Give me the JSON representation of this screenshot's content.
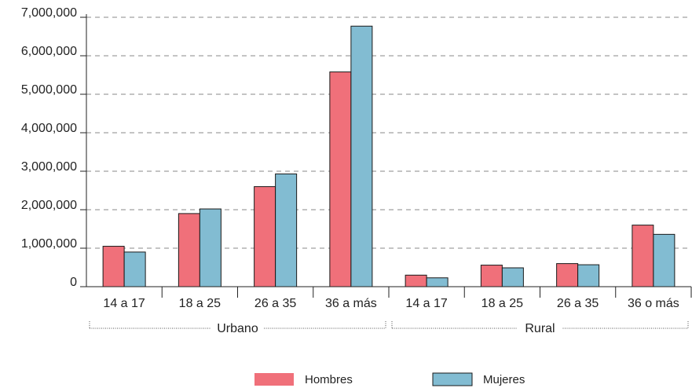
{
  "chart_data": {
    "type": "bar",
    "categories": [
      "14 a 17",
      "18 a 25",
      "26 a 35",
      "36 a más",
      "14 a 17",
      "18 a 25",
      "26 a 35",
      "36 o más"
    ],
    "groups": [
      {
        "label": "Urbano",
        "categories": [
          0,
          1,
          2,
          3
        ]
      },
      {
        "label": "Rural",
        "categories": [
          4,
          5,
          6,
          7
        ]
      }
    ],
    "series": [
      {
        "name": "Hombres",
        "color": "#f0707a",
        "values": [
          1050000,
          1900000,
          2600000,
          5580000,
          300000,
          560000,
          600000,
          1600000
        ]
      },
      {
        "name": "Mujeres",
        "color": "#82bcd2",
        "values": [
          900000,
          2020000,
          2930000,
          6770000,
          230000,
          490000,
          570000,
          1360000
        ]
      }
    ],
    "yticks": [
      "0",
      "1,000,000",
      "2,000,000",
      "3,000,000",
      "4,000,000",
      "5,000,000",
      "6,000,000",
      "7,000,000"
    ],
    "ylim": [
      0,
      7000000
    ],
    "grid": true,
    "legend_position": "bottom-center"
  }
}
